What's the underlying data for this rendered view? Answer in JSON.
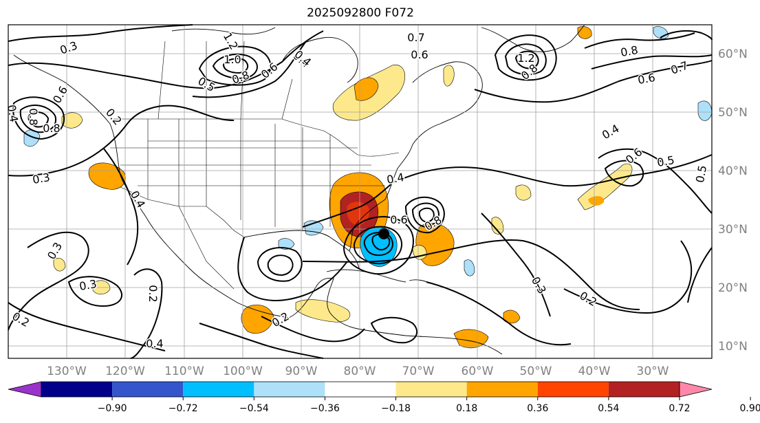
{
  "title": "2025092800 F072",
  "map": {
    "lat_labels": [
      "60°N",
      "50°N",
      "40°N",
      "30°N",
      "20°N",
      "10°N"
    ],
    "lon_labels": [
      "130°W",
      "120°W",
      "110°W",
      "100°W",
      "90°W",
      "80°W",
      "70°W",
      "60°W",
      "50°W",
      "40°W",
      "30°W"
    ],
    "contour_labels": [
      "0.3",
      "1.2",
      "1.0",
      "0.8",
      "0.6",
      "0.4",
      "0.5",
      "0.2",
      "0.8",
      "0.4",
      "0.3",
      "0.4",
      "0.3",
      "0.3",
      "0.2",
      "0.2",
      "0.4",
      "0.4",
      "0.6",
      "0.8",
      "0.3",
      "0.2",
      "0.2",
      "0.4",
      "0.5",
      "0.6",
      "0.4",
      "0.6",
      "0.7",
      "0.8",
      "1.2",
      "0.8",
      "0.7",
      "0.6",
      "0.5",
      "0.8",
      "0.6"
    ],
    "colors": {
      "coast": "#000000",
      "grid": "#a0a0a0",
      "contour": "#000000",
      "label": "#808080",
      "storm_center": "#000000"
    }
  },
  "colorbar": {
    "ticks": [
      "−0.90",
      "−0.72",
      "−0.54",
      "−0.36",
      "−0.18",
      "0.18",
      "0.36",
      "0.54",
      "0.72",
      "0.90"
    ],
    "colors": [
      "#9933cc",
      "#00008b",
      "#3455cc",
      "#00bfff",
      "#aee0fa",
      "#ffffff",
      "#fde98c",
      "#ffa500",
      "#ff4500",
      "#b22222",
      "#ff88aa"
    ]
  }
}
